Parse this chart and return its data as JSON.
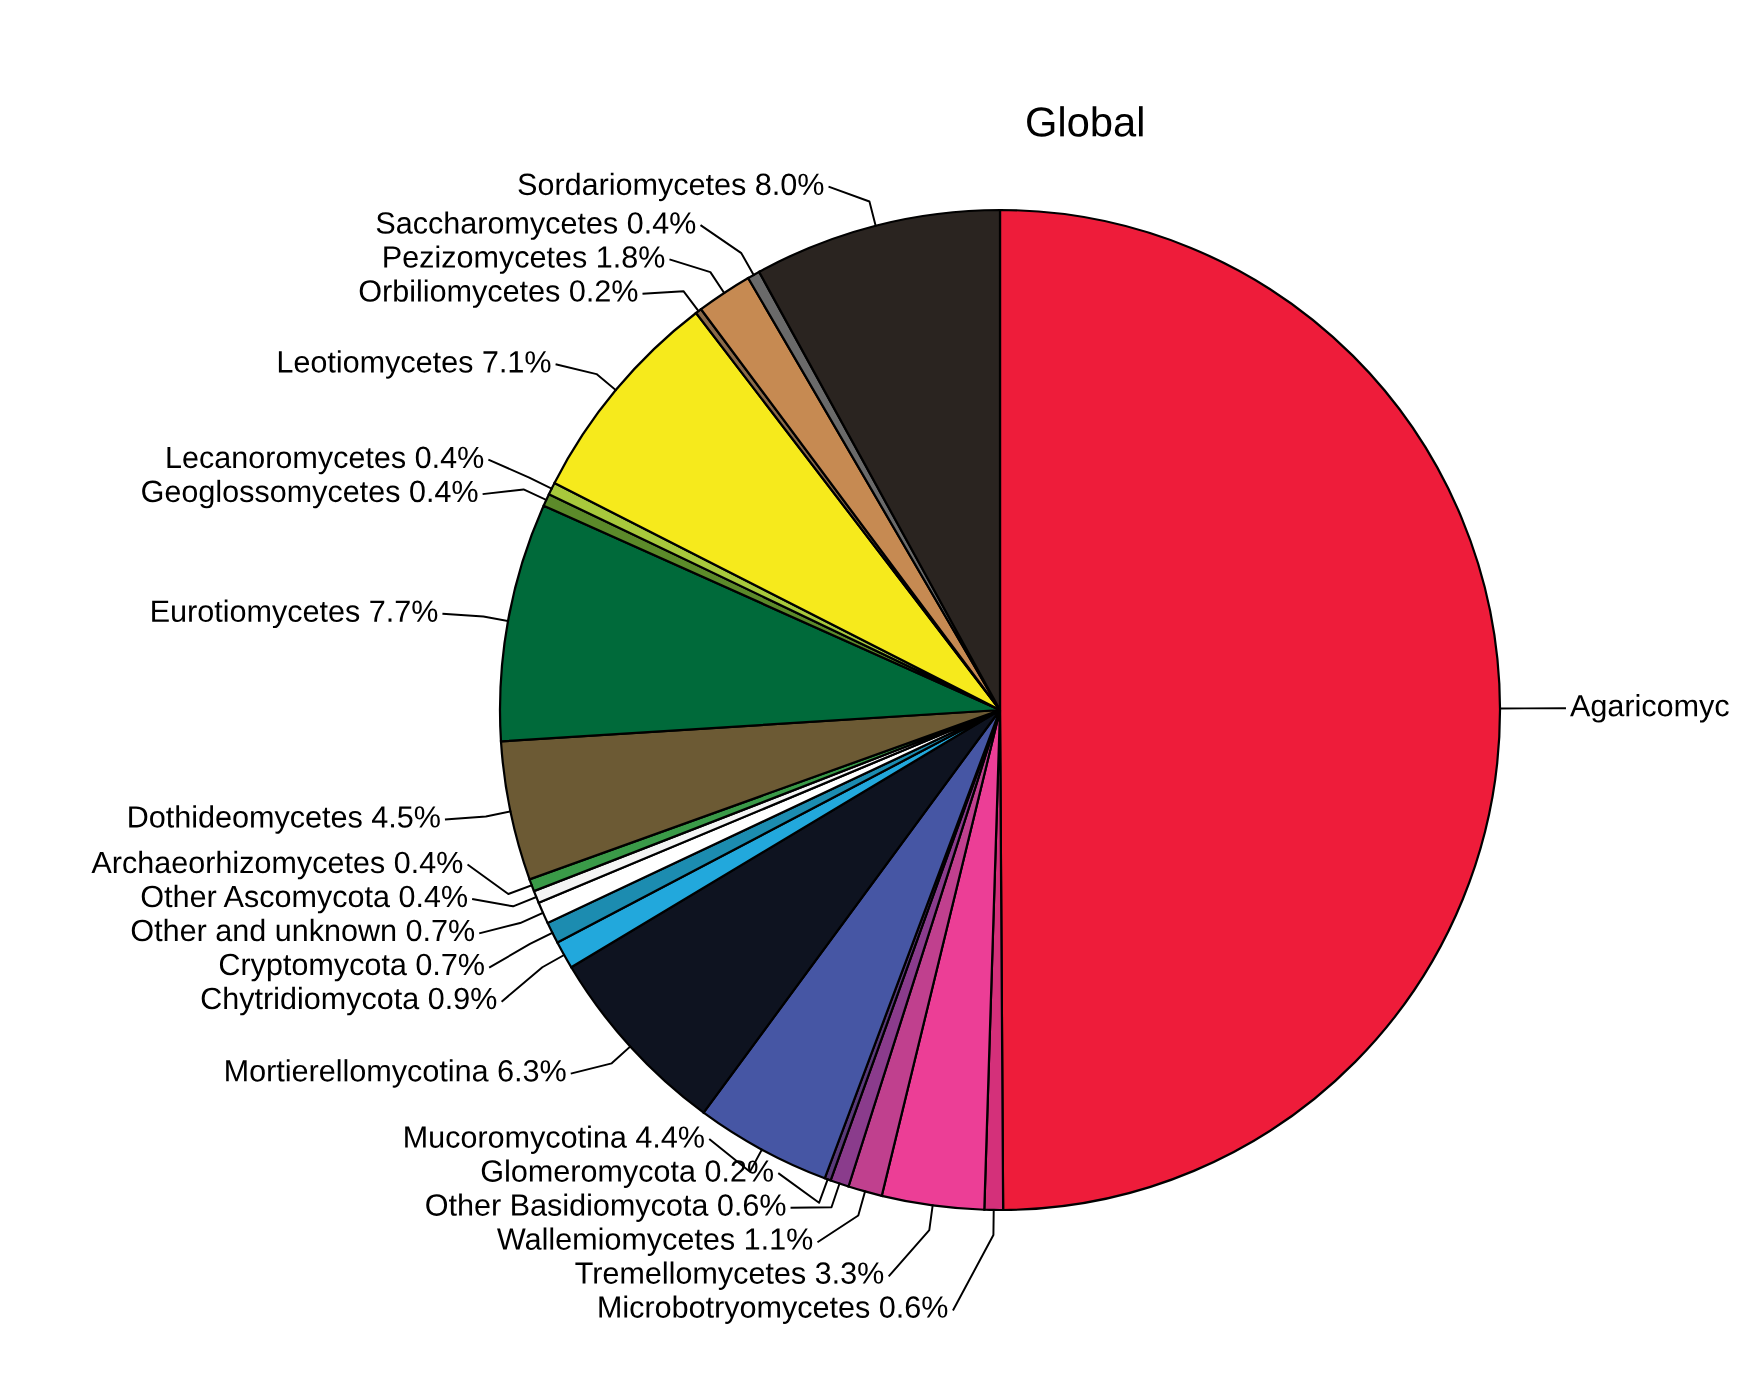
{
  "chart_data": {
    "type": "pie",
    "title": "Global",
    "categories": [
      "Agaricomyc",
      "Microbotryomycetes 0.6%",
      "Tremellomycetes 3.3%",
      "Wallemiomycetes 1.1%",
      "Other Basidiomycota 0.6%",
      "Glomeromycota 0.2%",
      "Mucoromycotina 4.4%",
      "Mortierellomycotina 6.3%",
      "Chytridiomycota 0.9%",
      "Cryptomycota 0.7%",
      "Other and unknown 0.7%",
      "Other Ascomycota 0.4%",
      "Archaeorhizomycetes 0.4%",
      "Dothideomycetes 4.5%",
      "Eurotiomycetes 7.7%",
      "Geoglossomycetes 0.4%",
      "Lecanoromycetes 0.4%",
      "Leotiomycetes 7.1%",
      "Orbiliomycetes 0.2%",
      "Pezizomycetes 1.8%",
      "Saccharomycetes 0.4%",
      "Sordariomycetes 8.0%"
    ],
    "values": [
      49.9,
      0.6,
      3.3,
      1.1,
      0.6,
      0.2,
      4.4,
      6.3,
      0.9,
      0.7,
      0.7,
      0.4,
      0.4,
      4.5,
      7.7,
      0.4,
      0.4,
      7.1,
      0.2,
      1.8,
      0.4,
      8.0
    ],
    "colors": [
      "#ee1c3a",
      "#d4307a",
      "#ec3e96",
      "#c0408e",
      "#8a3c8c",
      "#5a3a7a",
      "#4656a4",
      "#0e1320",
      "#22a8dc",
      "#1c8cb0",
      "#ffffff",
      "#f4f4f4",
      "#3a9a48",
      "#6c5a34",
      "#006a3a",
      "#5c8a2a",
      "#a8c83c",
      "#f6ea1c",
      "#8a6a48",
      "#c68a52",
      "#6a6a6a",
      "#2a2420"
    ]
  }
}
